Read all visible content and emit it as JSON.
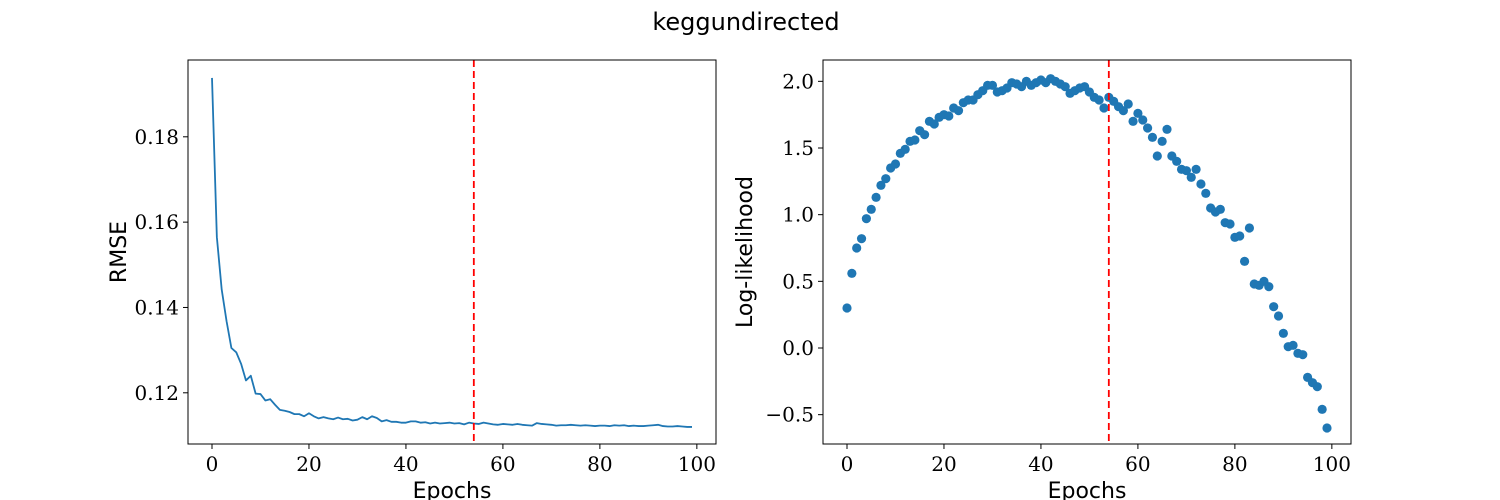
{
  "figure": {
    "title": "keggundirected"
  },
  "chart_data": [
    {
      "type": "line",
      "xlabel": "Epochs",
      "ylabel": "RMSE",
      "xlim": [
        -4.95,
        103.95
      ],
      "ylim": [
        0.108,
        0.198
      ],
      "xticks": [
        0,
        20,
        40,
        60,
        80,
        100
      ],
      "yticks": [
        0.12,
        0.14,
        0.16,
        0.18
      ],
      "ytick_labels": [
        "0.12",
        "0.14",
        "0.16",
        "0.18"
      ],
      "grid": false,
      "series_color": "#1f77b4",
      "vline": {
        "x": 54,
        "color": "#ff0000",
        "style": "dashed"
      },
      "x": [
        0,
        1,
        2,
        3,
        4,
        5,
        6,
        7,
        8,
        9,
        10,
        11,
        12,
        13,
        14,
        15,
        16,
        17,
        18,
        19,
        20,
        21,
        22,
        23,
        24,
        25,
        26,
        27,
        28,
        29,
        30,
        31,
        32,
        33,
        34,
        35,
        36,
        37,
        38,
        39,
        40,
        41,
        42,
        43,
        44,
        45,
        46,
        47,
        48,
        49,
        50,
        51,
        52,
        53,
        54,
        55,
        56,
        57,
        58,
        59,
        60,
        61,
        62,
        63,
        64,
        65,
        66,
        67,
        68,
        69,
        70,
        71,
        72,
        73,
        74,
        75,
        76,
        77,
        78,
        79,
        80,
        81,
        82,
        83,
        84,
        85,
        86,
        87,
        88,
        89,
        90,
        91,
        92,
        93,
        94,
        95,
        96,
        97,
        98,
        99
      ],
      "values": [
        0.1938,
        0.1565,
        0.1442,
        0.1368,
        0.1305,
        0.1295,
        0.1268,
        0.1229,
        0.124,
        0.1198,
        0.1197,
        0.1182,
        0.1185,
        0.1172,
        0.116,
        0.1158,
        0.1155,
        0.115,
        0.115,
        0.1145,
        0.1152,
        0.1145,
        0.114,
        0.1143,
        0.114,
        0.1138,
        0.1142,
        0.1138,
        0.1139,
        0.1135,
        0.1137,
        0.1143,
        0.1138,
        0.1145,
        0.1141,
        0.1133,
        0.1136,
        0.1132,
        0.1132,
        0.113,
        0.113,
        0.1133,
        0.1133,
        0.113,
        0.1131,
        0.1128,
        0.113,
        0.1128,
        0.1129,
        0.113,
        0.1128,
        0.1129,
        0.1126,
        0.113,
        0.1128,
        0.1127,
        0.113,
        0.1128,
        0.1126,
        0.1125,
        0.1127,
        0.1126,
        0.1125,
        0.1127,
        0.1125,
        0.1124,
        0.1123,
        0.1129,
        0.1127,
        0.1126,
        0.1125,
        0.1123,
        0.1124,
        0.1124,
        0.1125,
        0.1124,
        0.1123,
        0.1124,
        0.1123,
        0.1122,
        0.1123,
        0.1123,
        0.1122,
        0.1124,
        0.1123,
        0.1124,
        0.1122,
        0.1123,
        0.1122,
        0.1122,
        0.1123,
        0.1124,
        0.1125,
        0.1122,
        0.1121,
        0.1121,
        0.1122,
        0.1121,
        0.112,
        0.112
      ]
    },
    {
      "type": "scatter",
      "xlabel": "Epochs",
      "ylabel": "Log-likelihood",
      "xlim": [
        -4.95,
        103.95
      ],
      "ylim": [
        -0.72,
        2.16
      ],
      "xticks": [
        0,
        20,
        40,
        60,
        80,
        100
      ],
      "yticks": [
        -0.5,
        0.0,
        0.5,
        1.0,
        1.5,
        2.0
      ],
      "ytick_labels": [
        "−0.5",
        "0.0",
        "0.5",
        "1.0",
        "1.5",
        "2.0"
      ],
      "grid": false,
      "series_color": "#1f77b4",
      "vline": {
        "x": 54,
        "color": "#ff0000",
        "style": "dashed"
      },
      "x": [
        0,
        1,
        2,
        3,
        4,
        5,
        6,
        7,
        8,
        9,
        10,
        11,
        12,
        13,
        14,
        15,
        16,
        17,
        18,
        19,
        20,
        21,
        22,
        23,
        24,
        25,
        26,
        27,
        28,
        29,
        30,
        31,
        32,
        33,
        34,
        35,
        36,
        37,
        38,
        39,
        40,
        41,
        42,
        43,
        44,
        45,
        46,
        47,
        48,
        49,
        50,
        51,
        52,
        53,
        54,
        55,
        56,
        57,
        58,
        59,
        60,
        61,
        62,
        63,
        64,
        65,
        66,
        67,
        68,
        69,
        70,
        71,
        72,
        73,
        74,
        75,
        76,
        77,
        78,
        79,
        80,
        81,
        82,
        83,
        84,
        85,
        86,
        87,
        88,
        89,
        90,
        91,
        92,
        93,
        94,
        95,
        96,
        97,
        98,
        99
      ],
      "values": [
        0.3,
        0.56,
        0.75,
        0.82,
        0.97,
        1.04,
        1.13,
        1.22,
        1.27,
        1.35,
        1.38,
        1.46,
        1.49,
        1.55,
        1.56,
        1.63,
        1.6,
        1.7,
        1.68,
        1.73,
        1.75,
        1.74,
        1.8,
        1.78,
        1.84,
        1.86,
        1.86,
        1.9,
        1.93,
        1.97,
        1.97,
        1.92,
        1.93,
        1.95,
        1.99,
        1.98,
        1.96,
        2.0,
        1.97,
        1.99,
        2.01,
        1.99,
        2.02,
        2.0,
        1.98,
        1.96,
        1.91,
        1.93,
        1.95,
        1.96,
        1.92,
        1.88,
        1.86,
        1.8,
        1.88,
        1.85,
        1.81,
        1.78,
        1.83,
        1.7,
        1.76,
        1.71,
        1.65,
        1.58,
        1.44,
        1.55,
        1.64,
        1.44,
        1.4,
        1.34,
        1.33,
        1.28,
        1.34,
        1.23,
        1.16,
        1.05,
        1.02,
        1.04,
        0.94,
        0.93,
        0.83,
        0.84,
        0.65,
        0.9,
        0.48,
        0.47,
        0.5,
        0.46,
        0.31,
        0.24,
        0.11,
        0.01,
        0.02,
        -0.04,
        -0.05,
        -0.22,
        -0.26,
        -0.29,
        -0.46,
        -0.6
      ]
    }
  ]
}
